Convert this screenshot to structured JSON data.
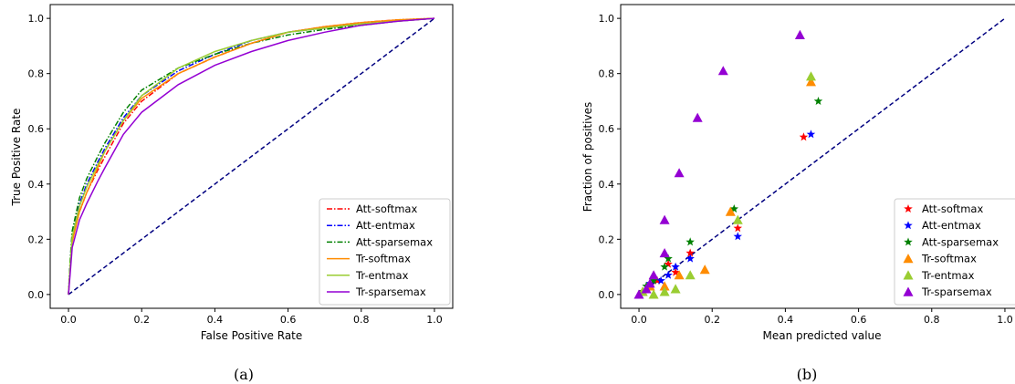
{
  "colors": {
    "att_softmax": "#ff0000",
    "att_entmax": "#0000ff",
    "att_sparsemax": "#008000",
    "tr_softmax": "#ff8c00",
    "tr_entmax": "#9acd32",
    "tr_sparsemax": "#9400d3",
    "diagonal": "#000080"
  },
  "chart_data": [
    {
      "type": "line",
      "caption": "(a)",
      "xlabel": "False Positive Rate",
      "ylabel": "True Positive Rate",
      "xlim": [
        -0.05,
        1.05
      ],
      "ylim": [
        -0.05,
        1.05
      ],
      "xticks": [
        "0.0",
        "0.2",
        "0.4",
        "0.6",
        "0.8",
        "1.0"
      ],
      "yticks": [
        "0.0",
        "0.2",
        "0.4",
        "0.6",
        "0.8",
        "1.0"
      ],
      "legend_position": "lower-right",
      "diagonal": [
        [
          0,
          0
        ],
        [
          1,
          1
        ]
      ],
      "series": [
        {
          "name": "Att-softmax",
          "color_key": "att_softmax",
          "dash": "dashdot",
          "points": [
            [
              0,
              0
            ],
            [
              0.005,
              0.1
            ],
            [
              0.01,
              0.2
            ],
            [
              0.03,
              0.3
            ],
            [
              0.05,
              0.37
            ],
            [
              0.08,
              0.45
            ],
            [
              0.1,
              0.5
            ],
            [
              0.15,
              0.62
            ],
            [
              0.2,
              0.7
            ],
            [
              0.3,
              0.8
            ],
            [
              0.4,
              0.86
            ],
            [
              0.5,
              0.91
            ],
            [
              0.6,
              0.95
            ],
            [
              0.7,
              0.97
            ],
            [
              0.8,
              0.985
            ],
            [
              0.9,
              0.995
            ],
            [
              1,
              1
            ]
          ]
        },
        {
          "name": "Att-entmax",
          "color_key": "att_entmax",
          "dash": "dashdot",
          "points": [
            [
              0,
              0
            ],
            [
              0.005,
              0.12
            ],
            [
              0.01,
              0.22
            ],
            [
              0.03,
              0.33
            ],
            [
              0.05,
              0.4
            ],
            [
              0.08,
              0.48
            ],
            [
              0.1,
              0.53
            ],
            [
              0.15,
              0.64
            ],
            [
              0.2,
              0.72
            ],
            [
              0.3,
              0.81
            ],
            [
              0.4,
              0.87
            ],
            [
              0.5,
              0.92
            ],
            [
              0.6,
              0.95
            ],
            [
              0.7,
              0.965
            ],
            [
              0.8,
              0.98
            ],
            [
              0.9,
              0.99
            ],
            [
              1,
              1
            ]
          ]
        },
        {
          "name": "Att-sparsemax",
          "color_key": "att_sparsemax",
          "dash": "dashdot",
          "points": [
            [
              0,
              0
            ],
            [
              0.005,
              0.13
            ],
            [
              0.01,
              0.23
            ],
            [
              0.03,
              0.35
            ],
            [
              0.05,
              0.42
            ],
            [
              0.08,
              0.5
            ],
            [
              0.1,
              0.55
            ],
            [
              0.15,
              0.66
            ],
            [
              0.2,
              0.74
            ],
            [
              0.3,
              0.82
            ],
            [
              0.4,
              0.87
            ],
            [
              0.5,
              0.91
            ],
            [
              0.6,
              0.94
            ],
            [
              0.7,
              0.96
            ],
            [
              0.8,
              0.975
            ],
            [
              0.9,
              0.99
            ],
            [
              1,
              1
            ]
          ]
        },
        {
          "name": "Tr-softmax",
          "color_key": "tr_softmax",
          "dash": "solid",
          "points": [
            [
              0,
              0
            ],
            [
              0.005,
              0.1
            ],
            [
              0.01,
              0.19
            ],
            [
              0.03,
              0.3
            ],
            [
              0.05,
              0.37
            ],
            [
              0.08,
              0.46
            ],
            [
              0.1,
              0.52
            ],
            [
              0.15,
              0.63
            ],
            [
              0.2,
              0.71
            ],
            [
              0.3,
              0.8
            ],
            [
              0.4,
              0.86
            ],
            [
              0.5,
              0.91
            ],
            [
              0.6,
              0.95
            ],
            [
              0.7,
              0.97
            ],
            [
              0.8,
              0.985
            ],
            [
              0.9,
              0.995
            ],
            [
              1,
              1
            ]
          ]
        },
        {
          "name": "Tr-entmax",
          "color_key": "tr_entmax",
          "dash": "solid",
          "points": [
            [
              0,
              0
            ],
            [
              0.005,
              0.11
            ],
            [
              0.01,
              0.21
            ],
            [
              0.03,
              0.32
            ],
            [
              0.05,
              0.39
            ],
            [
              0.08,
              0.47
            ],
            [
              0.1,
              0.52
            ],
            [
              0.15,
              0.63
            ],
            [
              0.2,
              0.72
            ],
            [
              0.3,
              0.82
            ],
            [
              0.4,
              0.88
            ],
            [
              0.5,
              0.92
            ],
            [
              0.6,
              0.95
            ],
            [
              0.7,
              0.965
            ],
            [
              0.8,
              0.98
            ],
            [
              0.9,
              0.99
            ],
            [
              1,
              1
            ]
          ]
        },
        {
          "name": "Tr-sparsemax",
          "color_key": "tr_sparsemax",
          "dash": "solid",
          "points": [
            [
              0,
              0
            ],
            [
              0.005,
              0.08
            ],
            [
              0.01,
              0.17
            ],
            [
              0.03,
              0.27
            ],
            [
              0.05,
              0.33
            ],
            [
              0.08,
              0.41
            ],
            [
              0.1,
              0.46
            ],
            [
              0.15,
              0.58
            ],
            [
              0.2,
              0.66
            ],
            [
              0.3,
              0.76
            ],
            [
              0.4,
              0.83
            ],
            [
              0.5,
              0.88
            ],
            [
              0.6,
              0.92
            ],
            [
              0.7,
              0.95
            ],
            [
              0.8,
              0.975
            ],
            [
              0.9,
              0.99
            ],
            [
              1,
              1
            ]
          ]
        }
      ]
    },
    {
      "type": "scatter",
      "caption": "(b)",
      "xlabel": "Mean predicted value",
      "ylabel": "Fraction of positives",
      "xlim": [
        -0.05,
        1.05
      ],
      "ylim": [
        -0.05,
        1.05
      ],
      "xticks": [
        "0.0",
        "0.2",
        "0.4",
        "0.6",
        "0.8",
        "1.0"
      ],
      "yticks": [
        "0.0",
        "0.2",
        "0.4",
        "0.6",
        "0.8",
        "1.0"
      ],
      "legend_position": "lower-right",
      "diagonal": [
        [
          0,
          0
        ],
        [
          1,
          1
        ]
      ],
      "series": [
        {
          "name": "Att-softmax",
          "color_key": "att_softmax",
          "marker": "star",
          "points": [
            [
              0.01,
              0.01
            ],
            [
              0.03,
              0.03
            ],
            [
              0.05,
              0.05
            ],
            [
              0.08,
              0.11
            ],
            [
              0.1,
              0.08
            ],
            [
              0.14,
              0.15
            ],
            [
              0.27,
              0.24
            ],
            [
              0.45,
              0.57
            ]
          ]
        },
        {
          "name": "Att-entmax",
          "color_key": "att_entmax",
          "marker": "star",
          "points": [
            [
              0.01,
              0.01
            ],
            [
              0.03,
              0.04
            ],
            [
              0.06,
              0.05
            ],
            [
              0.08,
              0.07
            ],
            [
              0.1,
              0.1
            ],
            [
              0.14,
              0.13
            ],
            [
              0.27,
              0.21
            ],
            [
              0.47,
              0.58
            ]
          ]
        },
        {
          "name": "Att-sparsemax",
          "color_key": "att_sparsemax",
          "marker": "star",
          "points": [
            [
              0.01,
              0.01
            ],
            [
              0.02,
              0.03
            ],
            [
              0.04,
              0.05
            ],
            [
              0.07,
              0.1
            ],
            [
              0.08,
              0.13
            ],
            [
              0.14,
              0.19
            ],
            [
              0.26,
              0.31
            ],
            [
              0.49,
              0.7
            ]
          ]
        },
        {
          "name": "Tr-softmax",
          "color_key": "tr_softmax",
          "marker": "triangle",
          "points": [
            [
              0.01,
              0.01
            ],
            [
              0.03,
              0.03
            ],
            [
              0.07,
              0.03
            ],
            [
              0.11,
              0.07
            ],
            [
              0.18,
              0.09
            ],
            [
              0.25,
              0.3
            ],
            [
              0.47,
              0.77
            ]
          ]
        },
        {
          "name": "Tr-entmax",
          "color_key": "tr_entmax",
          "marker": "triangle",
          "points": [
            [
              0.01,
              0.01
            ],
            [
              0.04,
              0.0
            ],
            [
              0.07,
              0.01
            ],
            [
              0.1,
              0.02
            ],
            [
              0.14,
              0.07
            ],
            [
              0.27,
              0.27
            ],
            [
              0.47,
              0.79
            ]
          ]
        },
        {
          "name": "Tr-sparsemax",
          "color_key": "tr_sparsemax",
          "marker": "triangle",
          "points": [
            [
              0.0,
              0.0
            ],
            [
              0.02,
              0.02
            ],
            [
              0.03,
              0.04
            ],
            [
              0.04,
              0.07
            ],
            [
              0.07,
              0.15
            ],
            [
              0.07,
              0.27
            ],
            [
              0.11,
              0.44
            ],
            [
              0.16,
              0.64
            ],
            [
              0.23,
              0.81
            ],
            [
              0.44,
              0.94
            ]
          ]
        }
      ]
    }
  ]
}
